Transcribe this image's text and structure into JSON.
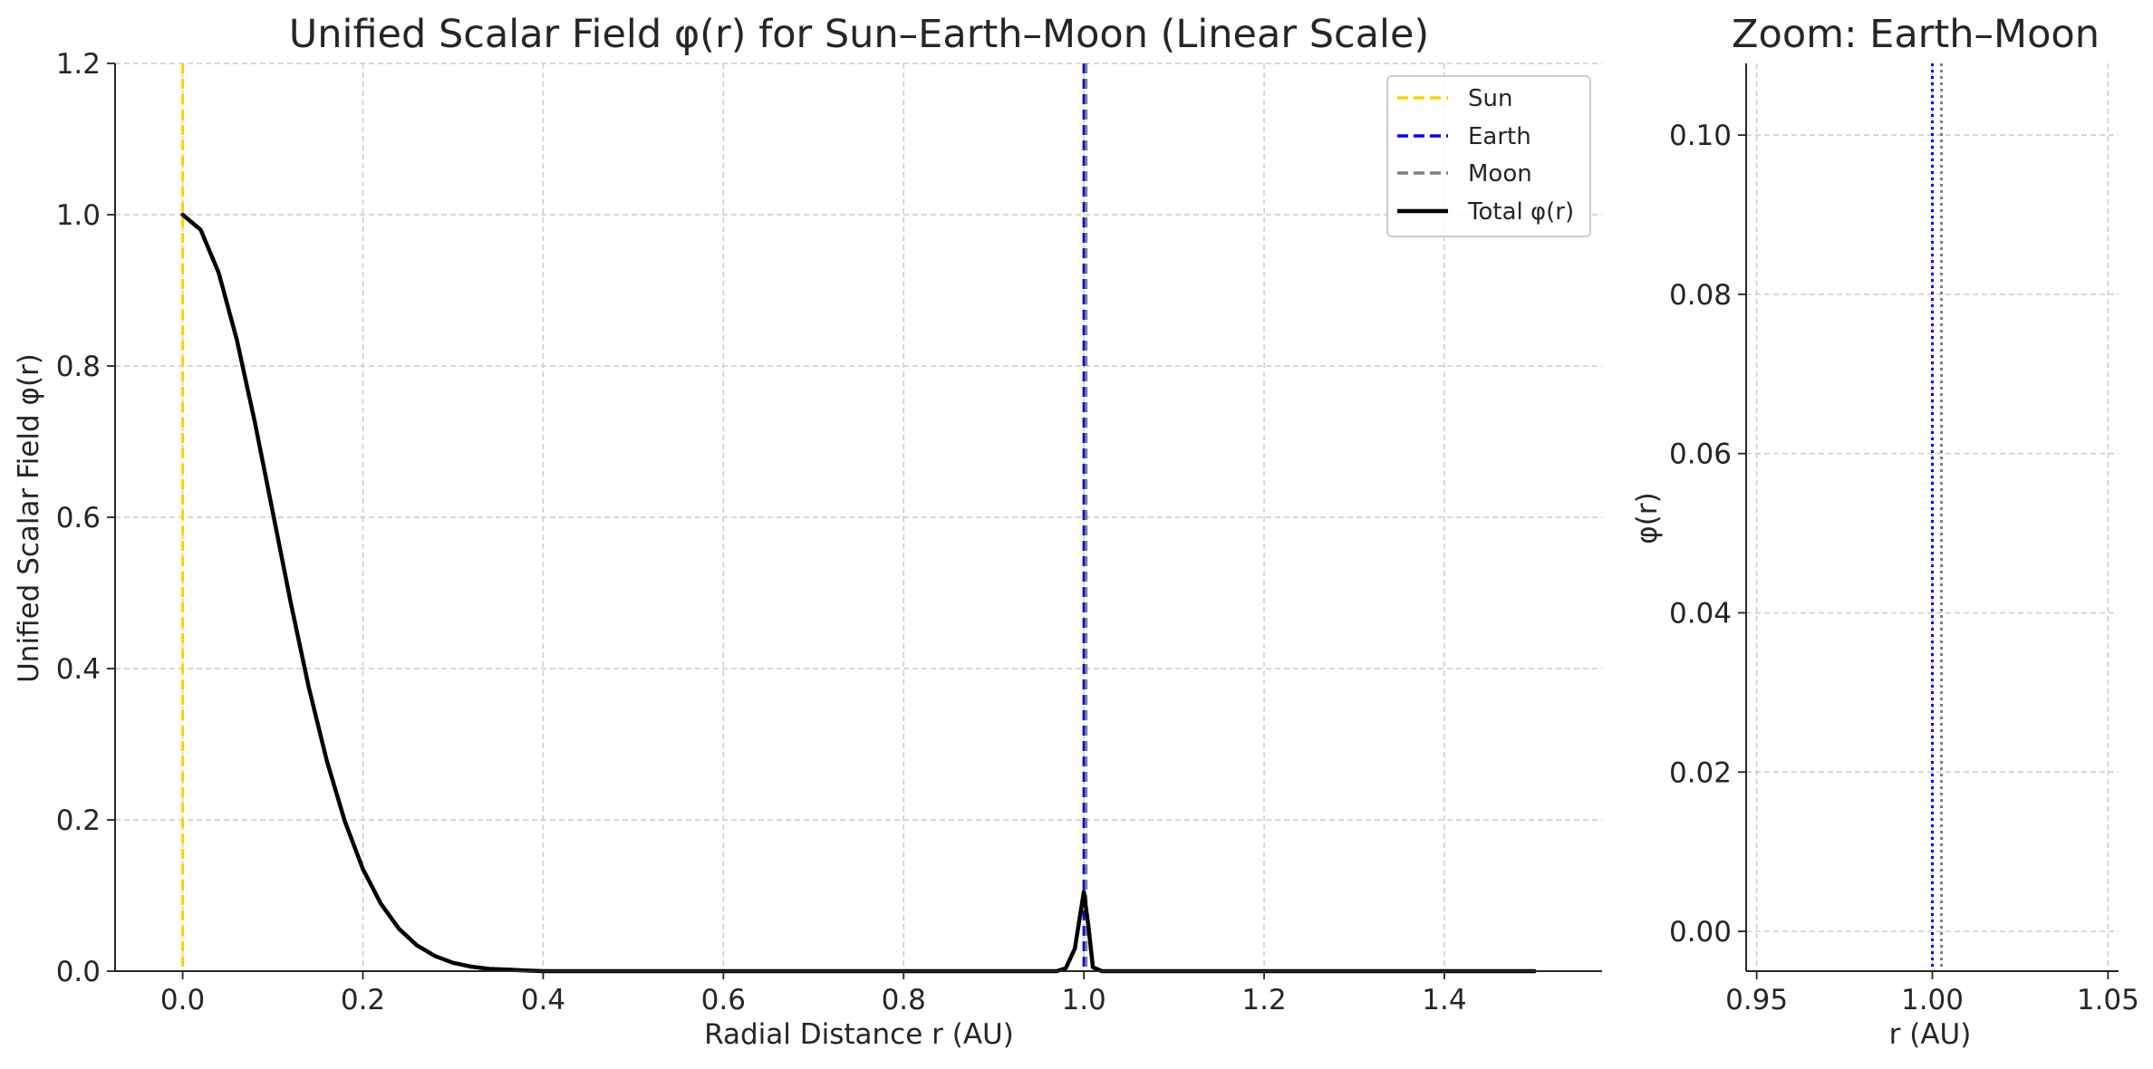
{
  "chart_data": [
    {
      "type": "line",
      "title": "Unified Scalar Field φ(r) for Sun–Earth–Moon (Linear Scale)",
      "xlabel": "Radial Distance r (AU)",
      "ylabel": "Unified Scalar Field φ(r)",
      "xlim": [
        -0.075,
        1.575
      ],
      "ylim": [
        0,
        1.2
      ],
      "xticks": [
        0.0,
        0.2,
        0.4,
        0.6,
        0.8,
        1.0,
        1.2,
        1.4
      ],
      "xtick_labels": [
        "0.0",
        "0.2",
        "0.4",
        "0.6",
        "0.8",
        "1.0",
        "1.2",
        "1.4"
      ],
      "yticks": [
        0.0,
        0.2,
        0.4,
        0.6,
        0.8,
        1.0,
        1.2
      ],
      "ytick_labels": [
        "0.0",
        "0.2",
        "0.4",
        "0.6",
        "0.8",
        "1.0",
        "1.2"
      ],
      "grid": true,
      "legend_position": "top-right",
      "series": [
        {
          "name": "Sun",
          "kind": "vline",
          "x": 0.0,
          "color": "#FFD000",
          "style": "dashed"
        },
        {
          "name": "Earth",
          "kind": "vline",
          "x": 1.0,
          "color": "#0000FF",
          "style": "dashed"
        },
        {
          "name": "Moon",
          "kind": "vline",
          "x": 1.00257,
          "color": "#808080",
          "style": "dashed"
        },
        {
          "name": "Total φ(r)",
          "kind": "line",
          "color": "#000000",
          "x": [
            0.0,
            0.02,
            0.04,
            0.06,
            0.08,
            0.1,
            0.12,
            0.14,
            0.16,
            0.18,
            0.2,
            0.22,
            0.24,
            0.26,
            0.28,
            0.3,
            0.32,
            0.34,
            0.36,
            0.38,
            0.4,
            0.45,
            0.5,
            0.6,
            0.8,
            0.97,
            0.98,
            0.99,
            1.0,
            1.005,
            1.01,
            1.02,
            1.03,
            1.2,
            1.4,
            1.5
          ],
          "y": [
            1.0,
            0.98,
            0.923,
            0.835,
            0.726,
            0.607,
            0.487,
            0.375,
            0.278,
            0.198,
            0.135,
            0.089,
            0.056,
            0.034,
            0.02,
            0.011,
            0.006,
            0.003,
            0.002,
            0.001,
            0.0,
            0.0,
            0.0,
            0.0,
            0.0,
            0.0,
            0.004,
            0.03,
            0.105,
            0.06,
            0.005,
            0.0,
            0.0,
            0.0,
            0.0,
            0.0
          ]
        }
      ]
    },
    {
      "type": "line",
      "title": "Zoom: Earth–Moon",
      "xlabel": "r (AU)",
      "ylabel": "φ(r)",
      "xlim": [
        0.947,
        1.053
      ],
      "ylim": [
        -0.005,
        0.109
      ],
      "xticks": [
        0.95,
        1.0,
        1.05
      ],
      "xtick_labels": [
        "0.95",
        "1.00",
        "1.05"
      ],
      "yticks": [
        0.0,
        0.02,
        0.04,
        0.06,
        0.08,
        0.1
      ],
      "ytick_labels": [
        "0.00",
        "0.02",
        "0.04",
        "0.06",
        "0.08",
        "0.10"
      ],
      "grid": true,
      "series": [
        {
          "name": "Earth",
          "kind": "vline",
          "x": 1.0,
          "color": "#0000FF",
          "style": "dotted"
        },
        {
          "name": "Moon",
          "kind": "vline",
          "x": 1.00257,
          "color": "#808080",
          "style": "dotted"
        }
      ]
    }
  ]
}
